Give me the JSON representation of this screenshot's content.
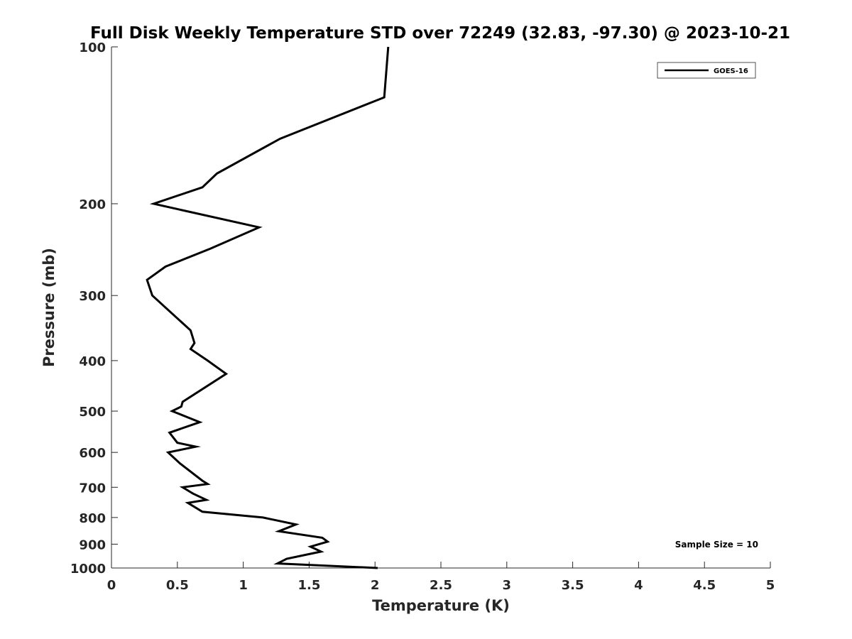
{
  "chart_data": {
    "type": "line",
    "title": "Full Disk Weekly Temperature STD over 72249 (32.83, -97.30) @ 2023-10-21",
    "xlabel": "Temperature (K)",
    "ylabel": "Pressure (mb)",
    "xlim": [
      0,
      5
    ],
    "ylim": [
      1000,
      100
    ],
    "y_scale": "log",
    "y_reversed": true,
    "grid": false,
    "legend_position": "top-right",
    "x_ticks": [
      0,
      0.5,
      1,
      1.5,
      2,
      2.5,
      3,
      3.5,
      4,
      4.5,
      5
    ],
    "x_tick_labels": [
      "0",
      "0.5",
      "1",
      "1.5",
      "2",
      "2.5",
      "3",
      "3.5",
      "4",
      "4.5",
      "5"
    ],
    "y_ticks": [
      100,
      200,
      300,
      400,
      500,
      600,
      700,
      800,
      900,
      1000
    ],
    "y_tick_labels": [
      "100",
      "200",
      "300",
      "400",
      "500",
      "600",
      "700",
      "800",
      "900",
      "1000"
    ],
    "series": [
      {
        "name": "GOES-16",
        "color": "#000000",
        "points": [
          [
            2.1,
            100
          ],
          [
            2.07,
            125
          ],
          [
            1.28,
            150
          ],
          [
            0.8,
            175
          ],
          [
            0.69,
            186
          ],
          [
            0.32,
            200
          ],
          [
            1.12,
            222
          ],
          [
            0.75,
            244
          ],
          [
            0.41,
            264
          ],
          [
            0.27,
            280
          ],
          [
            0.31,
            300
          ],
          [
            0.6,
            350
          ],
          [
            0.63,
            370
          ],
          [
            0.6,
            380
          ],
          [
            0.73,
            400
          ],
          [
            0.87,
            424
          ],
          [
            0.54,
            480
          ],
          [
            0.53,
            490
          ],
          [
            0.46,
            500
          ],
          [
            0.67,
            525
          ],
          [
            0.44,
            550
          ],
          [
            0.5,
            575
          ],
          [
            0.64,
            585
          ],
          [
            0.43,
            600
          ],
          [
            0.52,
            630
          ],
          [
            0.69,
            680
          ],
          [
            0.73,
            690
          ],
          [
            0.54,
            700
          ],
          [
            0.6,
            715
          ],
          [
            0.62,
            720
          ],
          [
            0.72,
            740
          ],
          [
            0.58,
            750
          ],
          [
            0.69,
            780
          ],
          [
            1.15,
            800
          ],
          [
            1.4,
            825
          ],
          [
            1.27,
            850
          ],
          [
            1.6,
            875
          ],
          [
            1.64,
            890
          ],
          [
            1.51,
            910
          ],
          [
            1.59,
            930
          ],
          [
            1.33,
            960
          ],
          [
            1.26,
            980
          ],
          [
            2.02,
            1000
          ]
        ]
      }
    ],
    "annotations": [
      "Sample Size = 10"
    ]
  }
}
